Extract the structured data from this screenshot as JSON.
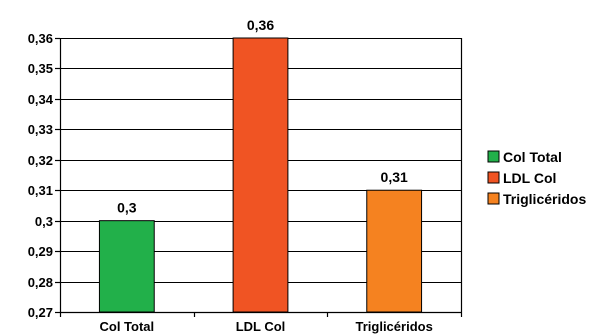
{
  "chart_data": {
    "type": "bar",
    "categories": [
      "Col Total",
      "LDL Col",
      "Triglicéridos"
    ],
    "values": [
      0.3,
      0.36,
      0.31
    ],
    "value_labels": [
      "0,3",
      "0,36",
      "0,31"
    ],
    "colors": [
      "#22b04a",
      "#f05423",
      "#f58220"
    ],
    "title": "",
    "xlabel": "",
    "ylabel": "",
    "ylim": [
      0.27,
      0.36
    ],
    "y_ticks": [
      0.27,
      0.28,
      0.29,
      0.3,
      0.31,
      0.32,
      0.33,
      0.34,
      0.35,
      0.36
    ],
    "y_tick_labels": [
      "0,27",
      "0,28",
      "0,29",
      "0,3",
      "0,31",
      "0,32",
      "0,33",
      "0,34",
      "0,35",
      "0,36"
    ],
    "grid": true,
    "legend": {
      "position": "right",
      "entries": [
        "Col Total",
        "LDL Col",
        "Triglicéridos"
      ]
    }
  }
}
